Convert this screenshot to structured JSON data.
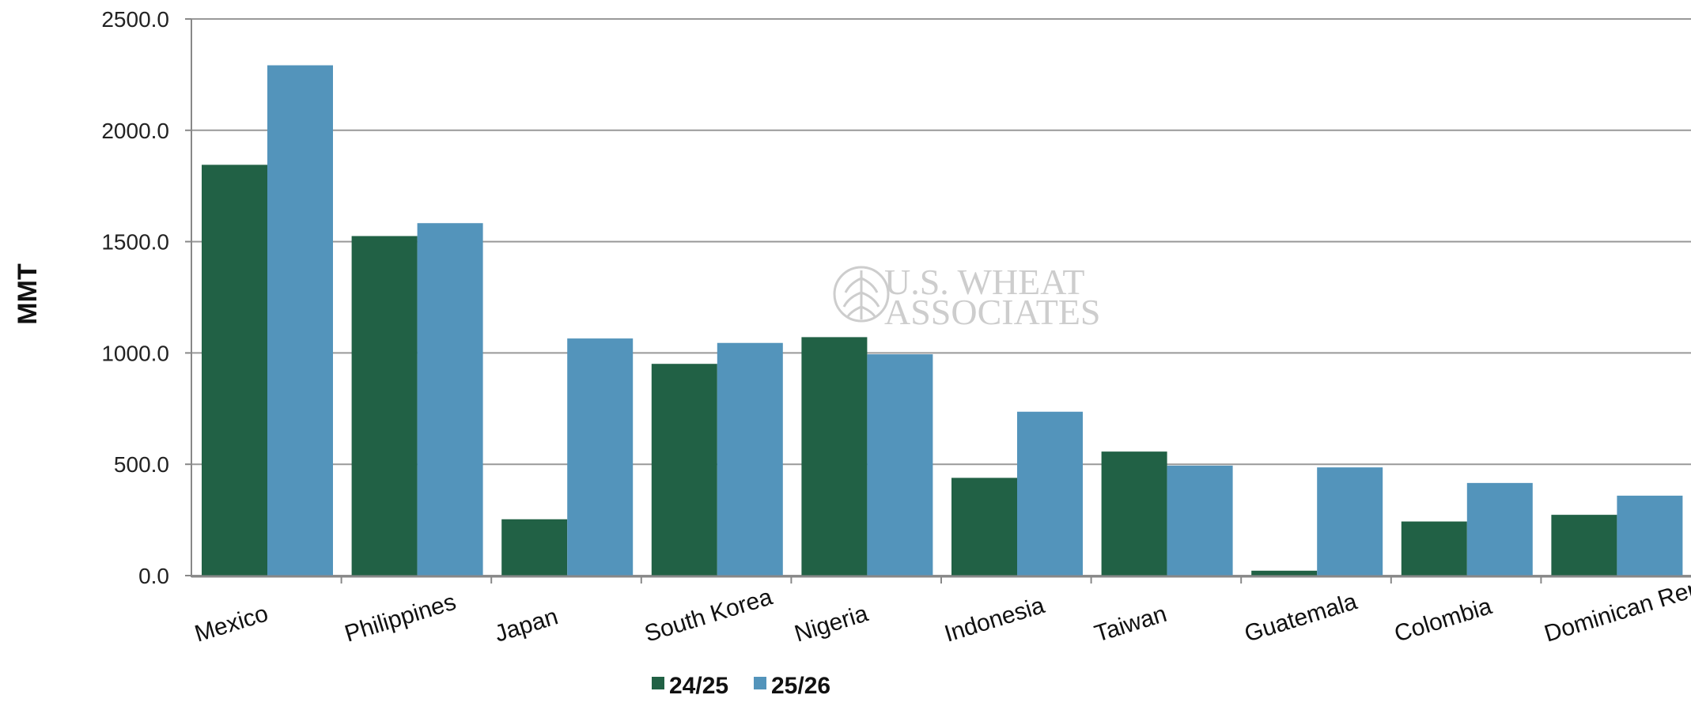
{
  "chart_data": {
    "type": "bar",
    "categories": [
      "Mexico",
      "Philippines",
      "Japan",
      "South Korea",
      "Nigeria",
      "Indonesia",
      "Taiwan",
      "Guatemala",
      "Colombia",
      "Dominican Republic"
    ],
    "series": [
      {
        "name": "24/25",
        "color": "#216145",
        "values": [
          1845,
          1525,
          253,
          951,
          1071,
          439,
          557,
          22,
          243,
          273
        ]
      },
      {
        "name": "25/26",
        "color": "#5394bb",
        "values": [
          2292,
          1583,
          1065,
          1045,
          994,
          736,
          494,
          486,
          416,
          359
        ]
      }
    ],
    "ylabel": "MMT",
    "ylim": [
      0,
      2500
    ],
    "yticks": [
      "0.0",
      "500.0",
      "1000.0",
      "1500.0",
      "2000.0",
      "2500.0"
    ],
    "grid": true,
    "legend_position": "bottom",
    "watermark": {
      "line1": "U.S. WHEAT",
      "line2": "ASSOCIATES"
    }
  }
}
